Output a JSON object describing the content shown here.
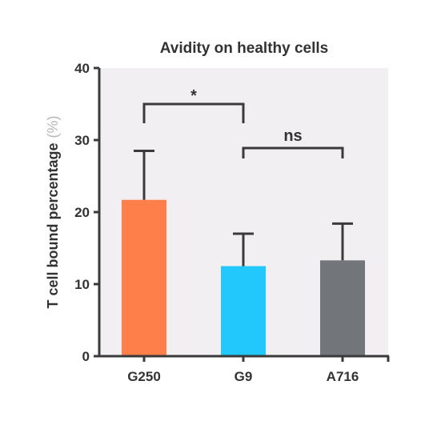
{
  "chart_data": {
    "type": "bar",
    "title": "Avidity on healthy cells",
    "ylabel": "T cell bound percentage",
    "yunit": "(%)",
    "xlabel": "",
    "categories": [
      "G250",
      "G9",
      "A716"
    ],
    "values": [
      21.7,
      12.5,
      13.3
    ],
    "errors": [
      6.8,
      4.5,
      5.1
    ],
    "colors": [
      "#ff7f4a",
      "#22c7fb",
      "#727579"
    ],
    "ylim": [
      0,
      40
    ],
    "yticks": [
      "0",
      "10",
      "20",
      "30",
      "40"
    ],
    "grid": false,
    "background": "#f1eff2",
    "significance": [
      {
        "from": "G250",
        "to": "G9",
        "label": "*"
      },
      {
        "from": "G9",
        "to": "A716",
        "label": "ns"
      }
    ]
  }
}
